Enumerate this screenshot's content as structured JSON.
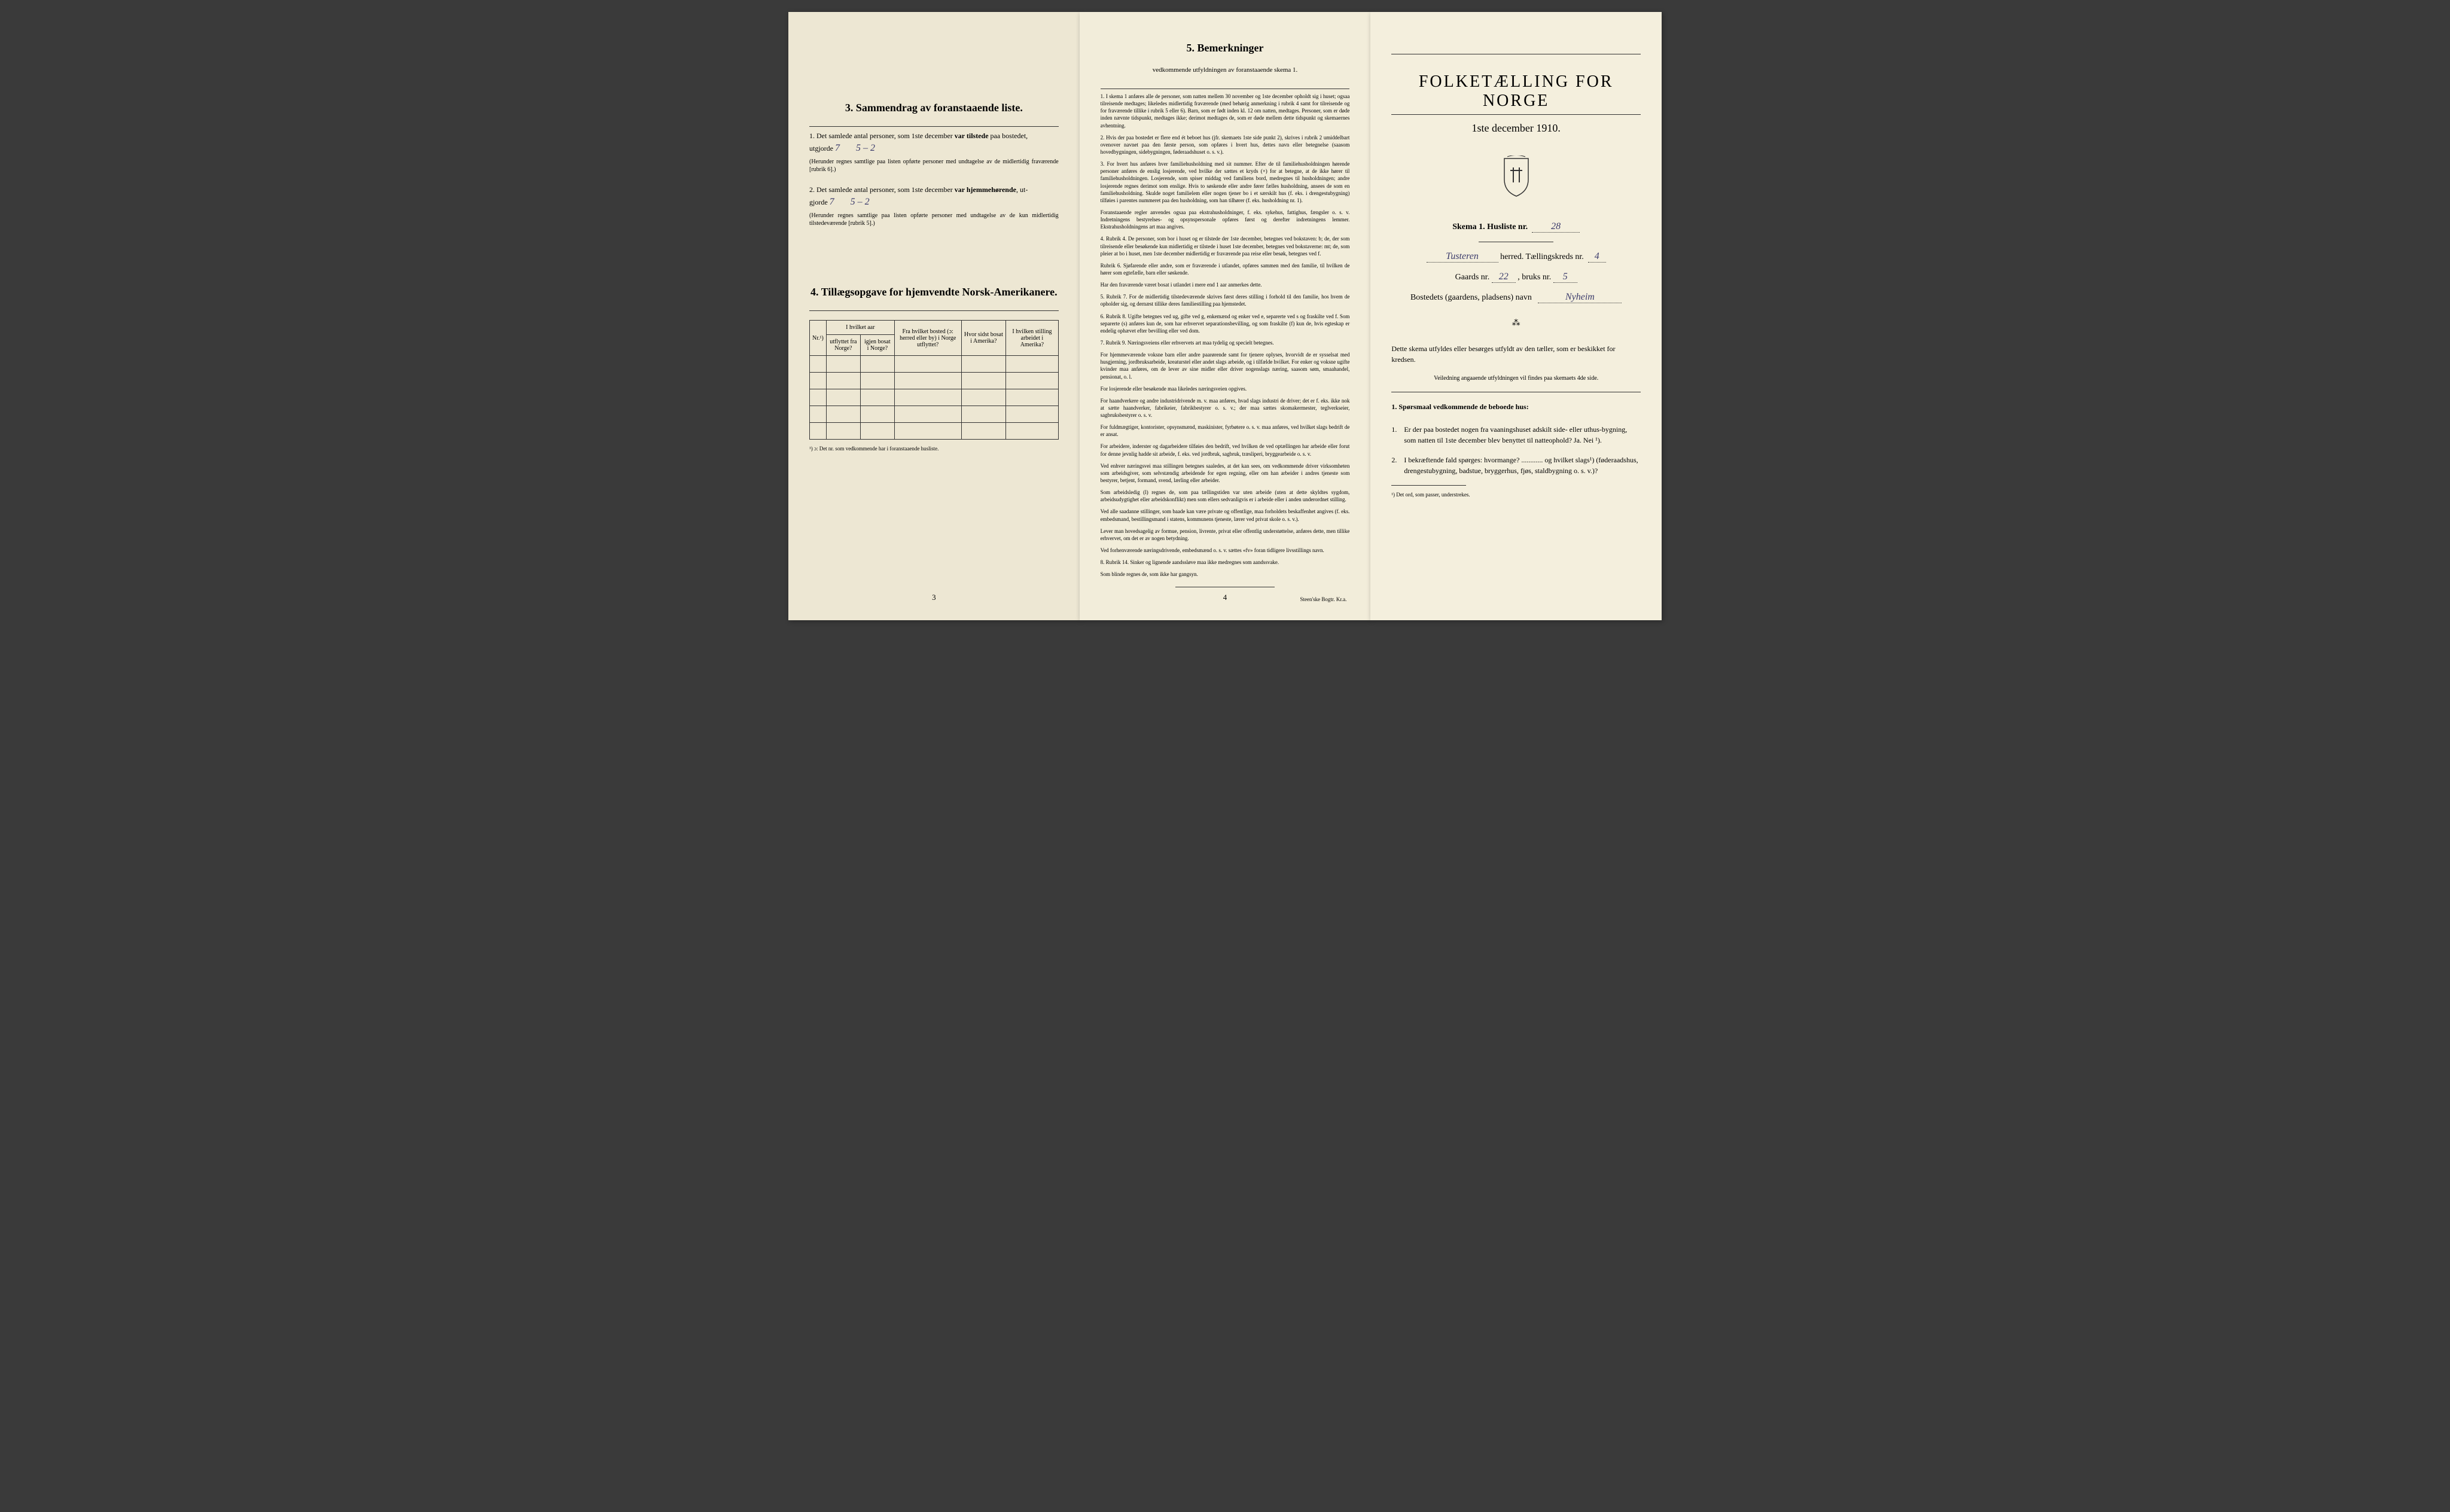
{
  "page_left": {
    "section3": {
      "title": "3.   Sammendrag av foranstaaende liste.",
      "item1_pre": "1.  Det samlede antal personer, som 1ste december ",
      "item1_bold": "var tilstede",
      "item1_post": " paa bostedet,",
      "item1_line2_pre": "utgjorde ",
      "item1_fill1": "7",
      "item1_fill2": "5 – 2",
      "item1_note": "(Herunder regnes samtlige paa listen opførte personer med undtagelse av de midlertidig fraværende [rubrik 6].)",
      "item2_pre": "2.  Det samlede antal personer, som 1ste december ",
      "item2_bold": "var hjemmehørende",
      "item2_post": ", ut-",
      "item2_line2_pre": "gjorde ",
      "item2_fill1": "7",
      "item2_fill2": "5 – 2",
      "item2_note": "(Herunder regnes samtlige paa listen opførte personer med undtagelse av de kun midlertidig tilstedeværende [rubrik 5].)"
    },
    "section4": {
      "title": "4.  Tillægsopgave for hjemvendte Norsk-Amerikanere.",
      "table": {
        "col1": "Nr.¹)",
        "col_group": "I hvilket aar",
        "col2a": "utflyttet fra Norge?",
        "col2b": "igjen bosat i Norge?",
        "col3": "Fra hvilket bosted (ɔ: herred eller by) i Norge utflyttet?",
        "col4": "Hvor sidst bosat i Amerika?",
        "col5": "I hvilken stilling arbeidet i Amerika?"
      },
      "footnote": "¹) ɔ: Det nr. som vedkommende har i foranstaaende husliste."
    },
    "page_num": "3"
  },
  "page_middle": {
    "title": "5.   Bemerkninger",
    "subtitle": "vedkommende utfyldningen av foranstaaende skema 1.",
    "items": [
      "1.  I skema 1 anføres alle de personer, som natten mellem 30 november og 1ste december opholdt sig i huset; ogsaa tilreisende medtages; likeledes midlertidig fraværende (med behørig anmerkning i rubrik 4 samt for tilreisende og for fraværende tillike i rubrik 5 eller 6). Barn, som er født inden kl. 12 om natten, medtages. Personer, som er døde inden nævnte tidspunkt, medtages ikke; derimot medtages de, som er døde mellem dette tidspunkt og skemaernes avhentning.",
      "2.  Hvis der paa bostedet er flere end ét beboet hus (jfr. skemaets 1ste side punkt 2), skrives i rubrik 2 umiddelbart ovenover navnet paa den første person, som opføres i hvert hus, dettes navn eller betegnelse (saasom hovedbygningen, sidebygningen, føderaadshuset o. s. v.).",
      "3.  For hvert hus anføres hver familiehusholdning med sit nummer. Efter de til familiehusholdningen hørende personer anføres de enslig losjerende, ved hvilke der sættes et kryds (×) for at betegne, at de ikke hører til familiehusholdningen. Losjerende, som spiser middag ved familiens bord, medregnes til husholdningen; andre losjerende regnes derimot som enslige. Hvis to søskende eller andre fører fælles husholdning, ansees de som en familiehusholdning. Skulde noget familielem eller nogen tjener bo i et særskilt hus (f. eks. i drengestubygning) tilføies i parentes nummeret paa den husholdning, som han tilhører (f. eks. husholdning nr. 1).",
      "   Foranstaaende regler anvendes ogsaa paa ekstrahusholdninger, f. eks. sykehus, fattighus, fængsler o. s. v. Indretningens bestyrelses- og opsynspersonale opføres først og derefter indretningens lemmer. Ekstrahusholdningens art maa angives.",
      "4.  Rubrik 4. De personer, som bor i huset og er tilstede der 1ste december, betegnes ved bokstaven: b; de, der som tilreisende eller besøkende kun midlertidig er tilstede i huset 1ste december, betegnes ved bokstaverne: mt; de, som pleier at bo i huset, men 1ste december midlertidig er fraværende paa reise eller besøk, betegnes ved f.",
      "   Rubrik 6. Sjøfarende eller andre, som er fraværende i utlandet, opføres sammen med den familie, til hvilken de hører som egtefælle, barn eller søskende.",
      "   Har den fraværende været bosat i utlandet i mere end 1 aar anmerkes dette.",
      "5.  Rubrik 7. For de midlertidig tilstedeværende skrives først deres stilling i forhold til den familie, hos hvem de opholder sig, og dernæst tillike deres familiestilling paa hjemstedet.",
      "6.  Rubrik 8. Ugifte betegnes ved ug, gifte ved g, enkemænd og enker ved e, separerte ved s og fraskilte ved f. Som separerte (s) anføres kun de, som har erhvervet separationsbevilling, og som fraskilte (f) kun de, hvis egteskap er endelig ophævet efter bevilling eller ved dom.",
      "7.  Rubrik 9. Næringsveiens eller erhvervets art maa tydelig og specielt betegnes.",
      "   For hjemmeværende voksne barn eller andre paarørende samt for tjenere oplyses, hvorvidt de er sysselsat med husgjerning, jordbruksarbeide, kreaturstel eller andet slags arbeide, og i tilfælde hvilket. For enker og voksne ugifte kvinder maa anføres, om de lever av sine midler eller driver nogenslags næring, saasom søm, smaahandel, pensionat, o. l.",
      "   For losjerende eller besøkende maa likeledes næringsveien opgives.",
      "   For haandverkere og andre industridrivende m. v. maa anføres, hvad slags industri de driver; det er f. eks. ikke nok at sætte haandverker, fabrikeier, fabrikbestyrer o. s. v.; der maa sættes skomakermester, teglverkseier, sagbruksbestyrer o. s. v.",
      "   For fuldmægtiger, kontorister, opsynsmænd, maskinister, fyrbøtere o. s. v. maa anføres, ved hvilket slags bedrift de er ansat.",
      "   For arbeidere, inderster og dagarbeidere tilføies den bedrift, ved hvilken de ved optællingen har arbeide eller forut for denne jevnlig hadde sit arbeide, f. eks. ved jordbruk, sagbruk, træsliperi, bryggearbeide o. s. v.",
      "   Ved enhver næringsvei maa stillingen betegnes saaledes, at det kan sees, om vedkommende driver virksomheten som arbeidsgiver, som selvstændig arbeidende for egen regning, eller om han arbeider i andres tjeneste som bestyrer, betjent, formand, svend, lærling eller arbeider.",
      "   Som arbeidsledig (l) regnes de, som paa tællingstiden var uten arbeide (uten at dette skyldtes sygdom, arbeidsudygtighet eller arbeidskonflikt) men som ellers sedvanligvis er i arbeide eller i anden underordnet stilling.",
      "   Ved alle saadanne stillinger, som baade kan være private og offentlige, maa forholdets beskaffenhet angives (f. eks. embedsmand, bestillingsmand i statens, kommunens tjeneste, lærer ved privat skole o. s. v.).",
      "   Lever man hovedsagelig av formue, pension, livrente, privat eller offentlig understøttelse, anføres dette, men tillike erhvervet, om det er av nogen betydning.",
      "   Ved forhenværende næringsdrivende, embedsmænd o. s. v. sættes «fv» foran tidligere livsstillings navn.",
      "8.  Rubrik 14. Sinker og lignende aandssløve maa ikke medregnes som aandssvake.",
      "   Som blinde regnes de, som ikke har gangsyn."
    ],
    "page_num": "4",
    "printer": "Steen'ske Bogtr.  Kr.a."
  },
  "page_right": {
    "main_title": "FOLKETÆLLING FOR NORGE",
    "date": "1ste december 1910.",
    "skema_label": "Skema 1.   Husliste nr.",
    "skema_nr": "28",
    "herred_fill": "Tusteren",
    "herred_label": " herred.   Tællingskreds nr.",
    "kreds_nr": "4",
    "gaards_label": "Gaards nr.",
    "gaards_nr": "22",
    "bruks_label": ", bruks nr.",
    "bruks_nr": "5",
    "bosted_label": "Bostedets (gaardens, pladsens) navn",
    "bosted_fill": "Nyheim",
    "divider": "⁂",
    "instruction1": "Dette skema utfyldes eller besørges utfyldt av den tæller, som er beskikket for kredsen.",
    "instruction2": "Veiledning angaaende utfyldningen vil findes paa skemaets 4de side.",
    "q_header": "1. Spørsmaal vedkommende de beboede hus:",
    "q1_num": "1.",
    "q1_text": "Er der paa bostedet nogen fra vaaningshuset adskilt side- eller uthus-bygning, som natten til 1ste december blev benyttet til natteophold?     Ja.   Nei ¹).",
    "q2_num": "2.",
    "q2_text": "I bekræftende fald spørges: hvormange? ............ og hvilket slags¹) (føderaadshus, drengestubygning, badstue, bryggerhus, fjøs, staldbygning o. s. v.)?",
    "footnote": "¹) Det ord, som passer, understrekes."
  }
}
